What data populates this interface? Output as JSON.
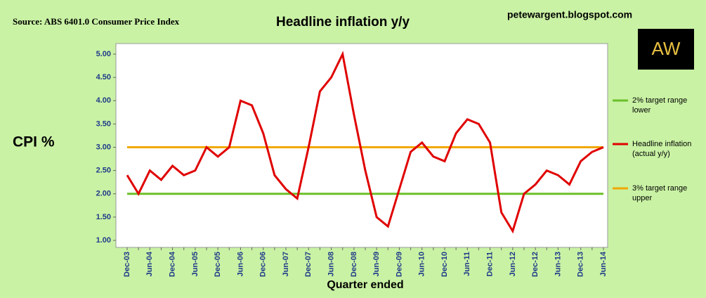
{
  "chart_data": {
    "type": "line",
    "title": "Headline inflation y/y",
    "source": "Source: ABS 6401.0 Consumer Price Index",
    "website": "petewargent.blogspot.com",
    "logo": "AW",
    "y_label": "CPI %",
    "x_label": "Quarter ended",
    "categories": [
      "Dec-03",
      null,
      "Jun-04",
      null,
      "Dec-04",
      null,
      "Jun-05",
      null,
      "Dec-05",
      null,
      "Jun-06",
      null,
      "Dec-06",
      null,
      "Jun-07",
      null,
      "Dec-07",
      null,
      "Jun-08",
      null,
      "Dec-08",
      null,
      "Jun-09",
      null,
      "Dec-09",
      null,
      "Jun-10",
      null,
      "Dec-10",
      null,
      "Jun-11",
      null,
      "Dec-11",
      null,
      "Jun-12",
      null,
      "Dec-12",
      null,
      "Jun-13",
      null,
      "Dec-13",
      null,
      "Jun-14"
    ],
    "series": [
      {
        "name": "2% target range lower",
        "color": "#6cbf2a",
        "values": [
          2,
          2,
          2,
          2,
          2,
          2,
          2,
          2,
          2,
          2,
          2,
          2,
          2,
          2,
          2,
          2,
          2,
          2,
          2,
          2,
          2,
          2,
          2,
          2,
          2,
          2,
          2,
          2,
          2,
          2,
          2,
          2,
          2,
          2,
          2,
          2,
          2,
          2,
          2,
          2,
          2,
          2,
          2
        ]
      },
      {
        "name": "Headline inflation (actual y/y)",
        "color": "#e00000",
        "values": [
          2.4,
          2.0,
          2.5,
          2.3,
          2.6,
          2.4,
          2.5,
          3.0,
          2.8,
          3.0,
          4.0,
          3.9,
          3.3,
          2.4,
          2.1,
          1.9,
          3.0,
          4.2,
          4.5,
          5.0,
          3.7,
          2.5,
          1.5,
          1.3,
          2.1,
          2.9,
          3.1,
          2.8,
          2.7,
          3.3,
          3.6,
          3.5,
          3.1,
          1.6,
          1.2,
          2.0,
          2.2,
          2.5,
          2.4,
          2.2,
          2.7,
          2.9,
          3.0
        ]
      },
      {
        "name": "3% target range upper",
        "color": "#f0a800",
        "values": [
          3,
          3,
          3,
          3,
          3,
          3,
          3,
          3,
          3,
          3,
          3,
          3,
          3,
          3,
          3,
          3,
          3,
          3,
          3,
          3,
          3,
          3,
          3,
          3,
          3,
          3,
          3,
          3,
          3,
          3,
          3,
          3,
          3,
          3,
          3,
          3,
          3,
          3,
          3,
          3,
          3,
          3,
          3
        ]
      }
    ],
    "ylim": [
      1,
      5
    ],
    "yticks": [
      {
        "value": 1,
        "label": "1.00"
      },
      {
        "value": 1.5,
        "label": "1.50"
      },
      {
        "value": 2,
        "label": "2.00"
      },
      {
        "value": 2.5,
        "label": "2.50"
      },
      {
        "value": 3,
        "label": "3.00"
      },
      {
        "value": 3.5,
        "label": "3.50"
      },
      {
        "value": 4,
        "label": "4.00"
      },
      {
        "value": 4.5,
        "label": "4.50"
      },
      {
        "value": 5,
        "label": "5.00"
      }
    ],
    "legend_position": "right"
  }
}
